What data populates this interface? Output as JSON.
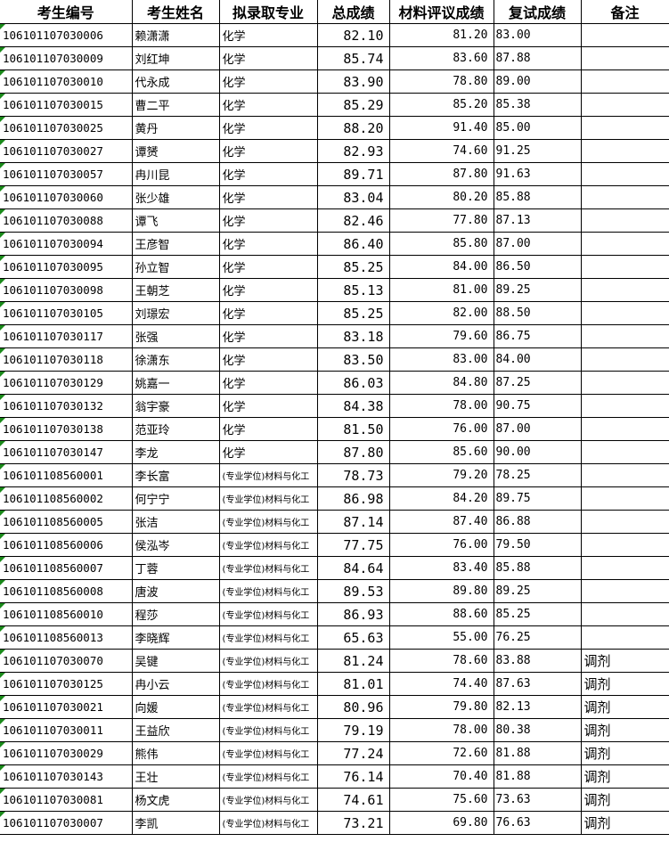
{
  "headers": [
    "考生编号",
    "考生姓名",
    "拟录取专业",
    "总成绩",
    "材料评议成绩",
    "复试成绩",
    "备注"
  ],
  "rows": [
    {
      "id": "106101107030006",
      "name": "赖潇潇",
      "major": "化学",
      "total": "82.10",
      "material": "81.20",
      "retest": "83.00",
      "note": ""
    },
    {
      "id": "106101107030009",
      "name": "刘红坤",
      "major": "化学",
      "total": "85.74",
      "material": "83.60",
      "retest": "87.88",
      "note": ""
    },
    {
      "id": "106101107030010",
      "name": "代永成",
      "major": "化学",
      "total": "83.90",
      "material": "78.80",
      "retest": "89.00",
      "note": ""
    },
    {
      "id": "106101107030015",
      "name": "曹二平",
      "major": "化学",
      "total": "85.29",
      "material": "85.20",
      "retest": "85.38",
      "note": ""
    },
    {
      "id": "106101107030025",
      "name": "黄丹",
      "major": "化学",
      "total": "88.20",
      "material": "91.40",
      "retest": "85.00",
      "note": ""
    },
    {
      "id": "106101107030027",
      "name": "谭赟",
      "major": "化学",
      "total": "82.93",
      "material": "74.60",
      "retest": "91.25",
      "note": ""
    },
    {
      "id": "106101107030057",
      "name": "冉川昆",
      "major": "化学",
      "total": "89.71",
      "material": "87.80",
      "retest": "91.63",
      "note": ""
    },
    {
      "id": "106101107030060",
      "name": "张少雄",
      "major": "化学",
      "total": "83.04",
      "material": "80.20",
      "retest": "85.88",
      "note": ""
    },
    {
      "id": "106101107030088",
      "name": "谭飞",
      "major": "化学",
      "total": "82.46",
      "material": "77.80",
      "retest": "87.13",
      "note": ""
    },
    {
      "id": "106101107030094",
      "name": "王彦智",
      "major": "化学",
      "total": "86.40",
      "material": "85.80",
      "retest": "87.00",
      "note": ""
    },
    {
      "id": "106101107030095",
      "name": "孙立智",
      "major": "化学",
      "total": "85.25",
      "material": "84.00",
      "retest": "86.50",
      "note": ""
    },
    {
      "id": "106101107030098",
      "name": "王朝芝",
      "major": "化学",
      "total": "85.13",
      "material": "81.00",
      "retest": "89.25",
      "note": ""
    },
    {
      "id": "106101107030105",
      "name": "刘璟宏",
      "major": "化学",
      "total": "85.25",
      "material": "82.00",
      "retest": "88.50",
      "note": ""
    },
    {
      "id": "106101107030117",
      "name": "张强",
      "major": "化学",
      "total": "83.18",
      "material": "79.60",
      "retest": "86.75",
      "note": ""
    },
    {
      "id": "106101107030118",
      "name": "徐潇东",
      "major": "化学",
      "total": "83.50",
      "material": "83.00",
      "retest": "84.00",
      "note": ""
    },
    {
      "id": "106101107030129",
      "name": "姚嘉一",
      "major": "化学",
      "total": "86.03",
      "material": "84.80",
      "retest": "87.25",
      "note": ""
    },
    {
      "id": "106101107030132",
      "name": "翁宇豪",
      "major": "化学",
      "total": "84.38",
      "material": "78.00",
      "retest": "90.75",
      "note": ""
    },
    {
      "id": "106101107030138",
      "name": "范亚玲",
      "major": "化学",
      "total": "81.50",
      "material": "76.00",
      "retest": "87.00",
      "note": ""
    },
    {
      "id": "106101107030147",
      "name": "李龙",
      "major": "化学",
      "total": "87.80",
      "material": "85.60",
      "retest": "90.00",
      "note": ""
    },
    {
      "id": "106101108560001",
      "name": "李长富",
      "major": "(专业学位)材料与化工",
      "total": "78.73",
      "material": "79.20",
      "retest": "78.25",
      "note": ""
    },
    {
      "id": "106101108560002",
      "name": "何宁宁",
      "major": "(专业学位)材料与化工",
      "total": "86.98",
      "material": "84.20",
      "retest": "89.75",
      "note": ""
    },
    {
      "id": "106101108560005",
      "name": "张洁",
      "major": "(专业学位)材料与化工",
      "total": "87.14",
      "material": "87.40",
      "retest": "86.88",
      "note": ""
    },
    {
      "id": "106101108560006",
      "name": "侯泓岑",
      "major": "(专业学位)材料与化工",
      "total": "77.75",
      "material": "76.00",
      "retest": "79.50",
      "note": ""
    },
    {
      "id": "106101108560007",
      "name": "丁蓉",
      "major": "(专业学位)材料与化工",
      "total": "84.64",
      "material": "83.40",
      "retest": "85.88",
      "note": ""
    },
    {
      "id": "106101108560008",
      "name": "唐波",
      "major": "(专业学位)材料与化工",
      "total": "89.53",
      "material": "89.80",
      "retest": "89.25",
      "note": ""
    },
    {
      "id": "106101108560010",
      "name": "程莎",
      "major": "(专业学位)材料与化工",
      "total": "86.93",
      "material": "88.60",
      "retest": "85.25",
      "note": ""
    },
    {
      "id": "106101108560013",
      "name": "李晓辉",
      "major": "(专业学位)材料与化工",
      "total": "65.63",
      "material": "55.00",
      "retest": "76.25",
      "note": ""
    },
    {
      "id": "106101107030070",
      "name": "吴键",
      "major": "(专业学位)材料与化工",
      "total": "81.24",
      "material": "78.60",
      "retest": "83.88",
      "note": "调剂"
    },
    {
      "id": "106101107030125",
      "name": "冉小云",
      "major": "(专业学位)材料与化工",
      "total": "81.01",
      "material": "74.40",
      "retest": "87.63",
      "note": "调剂"
    },
    {
      "id": "106101107030021",
      "name": "向媛",
      "major": "(专业学位)材料与化工",
      "total": "80.96",
      "material": "79.80",
      "retest": "82.13",
      "note": "调剂"
    },
    {
      "id": "106101107030011",
      "name": "王益欣",
      "major": "(专业学位)材料与化工",
      "total": "79.19",
      "material": "78.00",
      "retest": "80.38",
      "note": "调剂"
    },
    {
      "id": "106101107030029",
      "name": "熊伟",
      "major": "(专业学位)材料与化工",
      "total": "77.24",
      "material": "72.60",
      "retest": "81.88",
      "note": "调剂"
    },
    {
      "id": "106101107030143",
      "name": "王壮",
      "major": "(专业学位)材料与化工",
      "total": "76.14",
      "material": "70.40",
      "retest": "81.88",
      "note": "调剂"
    },
    {
      "id": "106101107030081",
      "name": "杨文虎",
      "major": "(专业学位)材料与化工",
      "total": "74.61",
      "material": "75.60",
      "retest": "73.63",
      "note": "调剂"
    },
    {
      "id": "106101107030007",
      "name": "李凯",
      "major": "(专业学位)材料与化工",
      "total": "73.21",
      "material": "69.80",
      "retest": "76.63",
      "note": "调剂"
    }
  ]
}
